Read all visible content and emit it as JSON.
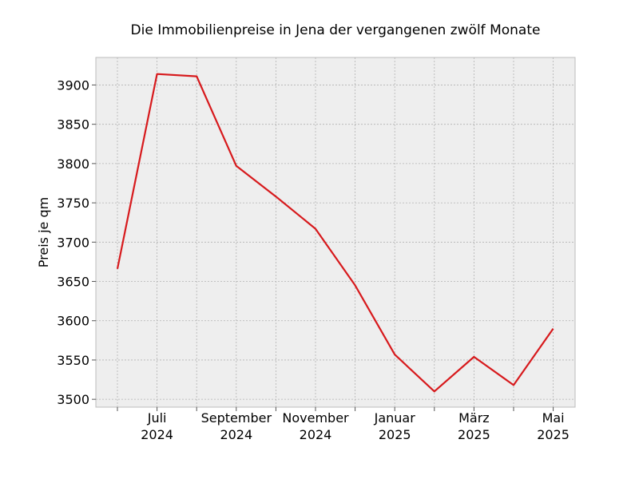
{
  "chart_data": {
    "type": "line",
    "title": "Die Immobilienpreise in Jena der vergangenen zwölf Monate",
    "xlabel": "",
    "ylabel": "Preis je qm",
    "x": [
      "2024-06",
      "2024-07",
      "2024-08",
      "2024-09",
      "2024-10",
      "2024-11",
      "2024-12",
      "2025-01",
      "2025-02",
      "2025-03",
      "2025-04",
      "2025-05"
    ],
    "series": [
      {
        "values": [
          3666,
          3914,
          3911,
          3797,
          3758,
          3717,
          3645,
          3557,
          3510,
          3554,
          3518,
          3590
        ]
      }
    ],
    "ylim": [
      3490,
      3935
    ],
    "yticks": [
      3500,
      3550,
      3600,
      3650,
      3700,
      3750,
      3800,
      3850,
      3900
    ],
    "xtick_labels": [
      {
        "month": "2024-07",
        "line1": "Juli",
        "line2": "2024"
      },
      {
        "month": "2024-09",
        "line1": "September",
        "line2": "2024"
      },
      {
        "month": "2024-11",
        "line1": "November",
        "line2": "2024"
      },
      {
        "month": "2025-01",
        "line1": "Januar",
        "line2": "2025"
      },
      {
        "month": "2025-03",
        "line1": "März",
        "line2": "2025"
      },
      {
        "month": "2025-05",
        "line1": "Mai",
        "line2": "2025"
      }
    ],
    "grid": true,
    "line_color": "#d7191c",
    "plot_background": "#eeeeee"
  }
}
